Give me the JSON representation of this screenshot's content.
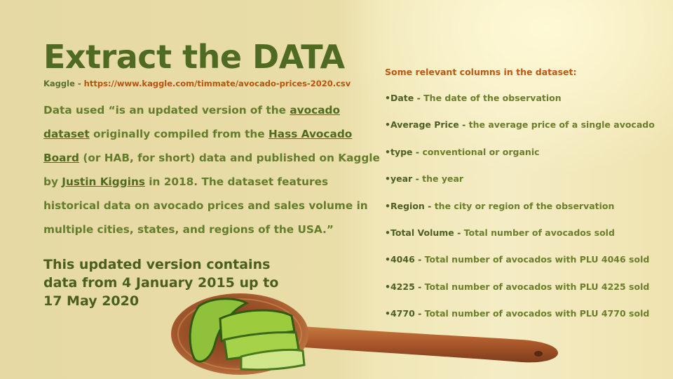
{
  "slide": {
    "title": "Extract the DATA",
    "source_prefix": "Kaggle - ",
    "source_url": "https://www.kaggle.com/timmate/avocado-prices-2020.csv",
    "quote": {
      "part1": "Data used “is an updated version of the ",
      "link1": "avocado dataset",
      "part2": " originally compiled from the ",
      "link2": "Hass Avocado Board",
      "part3": " (or HAB, for short) data and published on Kaggle by ",
      "link3": "Justin Kiggins",
      "part4": " in 2018. The dataset features historical data on avocado prices and sales volume in multiple cities, states, and regions of the USA.”"
    },
    "updated": "This updated version contains data from 4 January 2015 up to 17 May 2020"
  },
  "columns": {
    "heading": "Some relevant columns in the dataset:",
    "items": [
      {
        "name": "•Date - ",
        "desc": "The date of the observation"
      },
      {
        "name": "•Average Price - ",
        "desc": "the average price of a single avocado"
      },
      {
        "name": "•type - ",
        "desc": "conventional or organic"
      },
      {
        "name": "•year - ",
        "desc": "the year"
      },
      {
        "name": "•Region - ",
        "desc": "the city or region of the observation"
      },
      {
        "name": "•Total Volume - ",
        "desc": "Total number of avocados sold"
      },
      {
        "name": "•4046 - ",
        "desc": "Total number of avocados with PLU 4046 sold"
      },
      {
        "name": "•4225 - ",
        "desc": "Total number of avocados with PLU 4225 sold"
      },
      {
        "name": "•4770 - ",
        "desc": "Total number of avocados with PLU 4770 sold"
      }
    ]
  },
  "colors": {
    "title": "#4f6a22",
    "url": "#b8520f",
    "heading": "#c0560f",
    "text": "#647d2c"
  },
  "image": {
    "icon": "wooden-spoon-with-avocado-slices"
  }
}
